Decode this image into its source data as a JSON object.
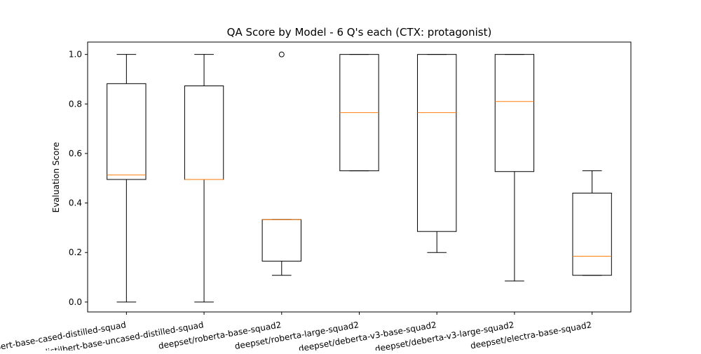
{
  "chart_data": {
    "type": "box",
    "title": "QA Score by Model - 6 Q's each (CTX: protagonist)",
    "xlabel": "",
    "ylabel": "Evaluation Score",
    "ylim": [
      -0.04,
      1.05
    ],
    "yticks": [
      "0.0",
      "0.2",
      "0.4",
      "0.6",
      "0.8",
      "1.0"
    ],
    "grid": false,
    "categories": [
      "distilbert-base-cased-distilled-squad",
      "distilbert-base-uncased-distilled-squad",
      "deepset/roberta-base-squad2",
      "deepset/roberta-large-squad2",
      "deepset/deberta-v3-base-squad2",
      "deepset/deberta-v3-large-squad2",
      "deepset/electra-base-squad2"
    ],
    "boxes": [
      {
        "whisker_low": 0.0,
        "q1": 0.495,
        "median": 0.513,
        "q3": 0.882,
        "whisker_high": 1.0,
        "outliers": []
      },
      {
        "whisker_low": 0.0,
        "q1": 0.495,
        "median": 0.495,
        "q3": 0.873,
        "whisker_high": 1.0,
        "outliers": []
      },
      {
        "whisker_low": 0.108,
        "q1": 0.165,
        "median": 0.333,
        "q3": 0.333,
        "whisker_high": 0.333,
        "outliers": [
          1.0
        ]
      },
      {
        "whisker_low": 0.53,
        "q1": 0.53,
        "median": 0.765,
        "q3": 1.0,
        "whisker_high": 1.0,
        "outliers": []
      },
      {
        "whisker_low": 0.2,
        "q1": 0.285,
        "median": 0.765,
        "q3": 1.0,
        "whisker_high": 1.0,
        "outliers": []
      },
      {
        "whisker_low": 0.085,
        "q1": 0.527,
        "median": 0.81,
        "q3": 1.0,
        "whisker_high": 1.0,
        "outliers": []
      },
      {
        "whisker_low": 0.108,
        "q1": 0.108,
        "median": 0.185,
        "q3": 0.44,
        "whisker_high": 0.53,
        "outliers": []
      }
    ],
    "colors": {
      "box": "#000000",
      "median": "#ff7f0e"
    }
  }
}
